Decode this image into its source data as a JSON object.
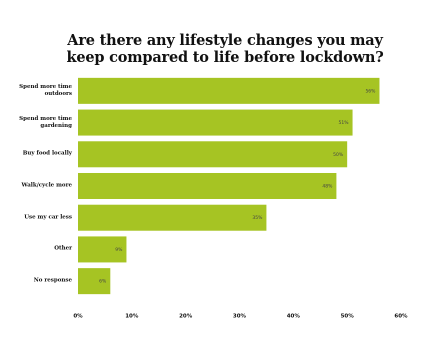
{
  "chart_data": {
    "type": "bar",
    "orientation": "horizontal",
    "title": "Are there any lifestyle changes you may keep compared to life before lockdown?",
    "categories": [
      "Spend more time outdoors",
      "Spend more time gardening",
      "Buy food locally",
      "Walk/cycle more",
      "Use my car less",
      "Other",
      "No response"
    ],
    "values": [
      56,
      51,
      50,
      48,
      35,
      9,
      6
    ],
    "value_labels": [
      "56%",
      "51%",
      "50%",
      "48%",
      "35%",
      "9%",
      "6%"
    ],
    "color": "#a6c423",
    "xlim": [
      0,
      60
    ],
    "xticks": [
      {
        "value": 0,
        "label": "0%"
      },
      {
        "value": 10,
        "label": "10%"
      },
      {
        "value": 20,
        "label": "20%"
      },
      {
        "value": 30,
        "label": "30%"
      },
      {
        "value": 40,
        "label": "40%"
      },
      {
        "value": 50,
        "label": "50%"
      },
      {
        "value": 60,
        "label": "60%"
      }
    ],
    "grid": false
  }
}
